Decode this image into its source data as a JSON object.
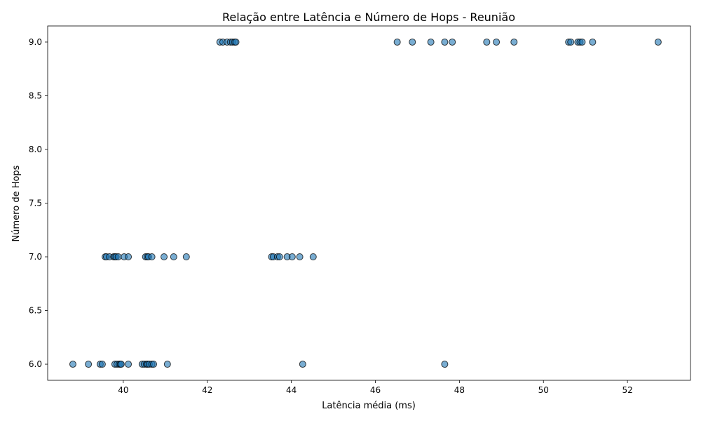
{
  "chart_data": {
    "type": "scatter",
    "title": "Relação entre Latência e Número de Hops - Reunião",
    "xlabel": "Latência média (ms)",
    "ylabel": "Número de Hops",
    "xlim": [
      38.2,
      53.5
    ],
    "ylim": [
      5.85,
      9.15
    ],
    "xticks": [
      40,
      42,
      44,
      46,
      48,
      50,
      52
    ],
    "yticks": [
      6.0,
      6.5,
      7.0,
      7.5,
      8.0,
      8.5,
      9.0
    ],
    "xtick_labels": [
      "40",
      "42",
      "44",
      "46",
      "48",
      "50",
      "52"
    ],
    "ytick_labels": [
      "6.0",
      "6.5",
      "7.0",
      "7.5",
      "8.0",
      "8.5",
      "9.0"
    ],
    "grid": false,
    "colors": {
      "point_fill": "#1f77b4",
      "point_edge": "#000000"
    },
    "series": [
      {
        "points": [
          [
            42.3,
            9
          ],
          [
            42.37,
            9
          ],
          [
            42.47,
            9
          ],
          [
            42.55,
            9
          ],
          [
            42.6,
            9
          ],
          [
            42.65,
            9
          ],
          [
            42.68,
            9
          ],
          [
            46.52,
            9
          ],
          [
            46.88,
            9
          ],
          [
            47.32,
            9
          ],
          [
            47.65,
            9
          ],
          [
            47.83,
            9
          ],
          [
            48.65,
            9
          ],
          [
            48.88,
            9
          ],
          [
            49.3,
            9
          ],
          [
            50.6,
            9
          ],
          [
            50.65,
            9
          ],
          [
            50.82,
            9
          ],
          [
            50.87,
            9
          ],
          [
            50.92,
            9
          ],
          [
            51.17,
            9
          ],
          [
            52.73,
            9
          ],
          [
            39.57,
            7
          ],
          [
            39.6,
            7
          ],
          [
            39.67,
            7
          ],
          [
            39.77,
            7
          ],
          [
            39.8,
            7
          ],
          [
            39.83,
            7
          ],
          [
            39.88,
            7
          ],
          [
            40.02,
            7
          ],
          [
            40.12,
            7
          ],
          [
            40.53,
            7
          ],
          [
            40.57,
            7
          ],
          [
            40.6,
            7
          ],
          [
            40.68,
            7
          ],
          [
            40.97,
            7
          ],
          [
            41.2,
            7
          ],
          [
            41.5,
            7
          ],
          [
            43.53,
            7
          ],
          [
            43.57,
            7
          ],
          [
            43.67,
            7
          ],
          [
            43.72,
            7
          ],
          [
            43.9,
            7
          ],
          [
            44.02,
            7
          ],
          [
            44.2,
            7
          ],
          [
            44.52,
            7
          ],
          [
            38.8,
            6
          ],
          [
            39.17,
            6
          ],
          [
            39.45,
            6
          ],
          [
            39.5,
            6
          ],
          [
            39.8,
            6
          ],
          [
            39.85,
            6
          ],
          [
            39.9,
            6
          ],
          [
            39.93,
            6
          ],
          [
            39.95,
            6
          ],
          [
            40.12,
            6
          ],
          [
            40.45,
            6
          ],
          [
            40.5,
            6
          ],
          [
            40.55,
            6
          ],
          [
            40.58,
            6
          ],
          [
            40.62,
            6
          ],
          [
            40.68,
            6
          ],
          [
            40.72,
            6
          ],
          [
            41.05,
            6
          ],
          [
            44.27,
            6
          ],
          [
            47.65,
            6
          ]
        ]
      }
    ]
  }
}
